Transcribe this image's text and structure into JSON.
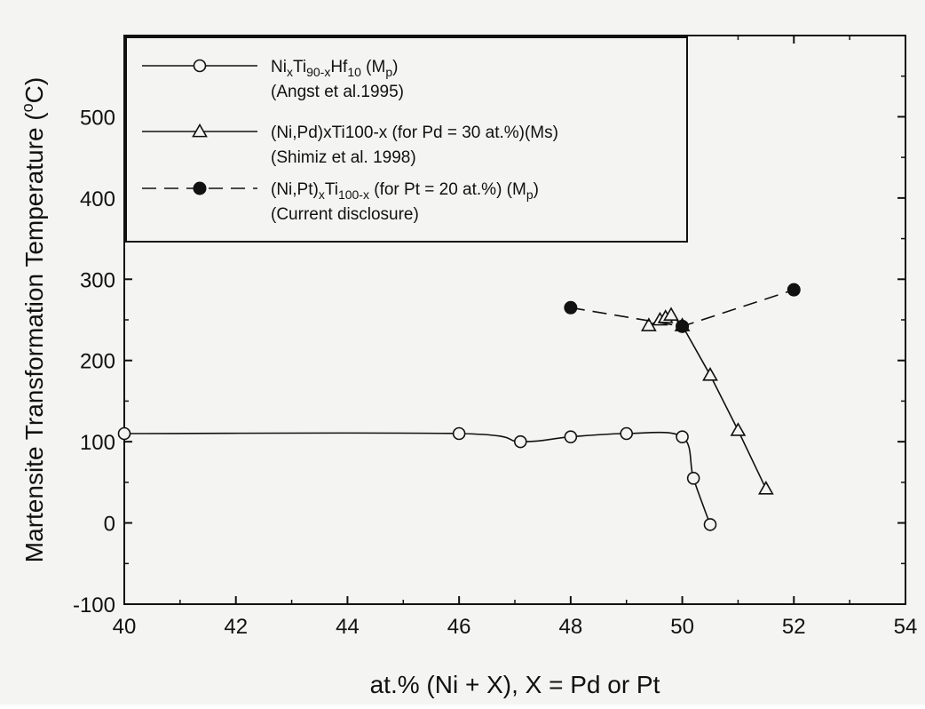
{
  "chart_data": {
    "type": "line",
    "xlabel": "at.% (Ni + X), X = Pd or Pt",
    "ylabel": "Martensite Transformation Temperature (°C)",
    "ylabel_parts": {
      "main": "Martensite Transformation Temperature (",
      "sup": "o",
      "unit": "C)"
    },
    "xlim": [
      40,
      54
    ],
    "ylim": [
      -100,
      600
    ],
    "xticks": [
      40,
      42,
      44,
      46,
      48,
      50,
      52,
      54
    ],
    "yticks": [
      -100,
      0,
      100,
      200,
      300,
      400,
      500
    ],
    "grid": false,
    "legend_position": "top-left",
    "series": [
      {
        "name": "NixTi90-xHf10 (Mp)",
        "legend": {
          "parts": [
            {
              "t": "Ni"
            },
            {
              "t": "x",
              "sub": true
            },
            {
              "t": "Ti"
            },
            {
              "t": "90-x",
              "sub": true
            },
            {
              "t": "Hf"
            },
            {
              "t": "10",
              "sub": true
            },
            {
              "t": "  (M"
            },
            {
              "t": "p",
              "sub": true
            },
            {
              "t": ")"
            }
          ],
          "source": "(Angst et al.1995)"
        },
        "marker": "open-circle",
        "line_style": "solid",
        "smooth": true,
        "x": [
          40.0,
          46.0,
          47.1,
          48.0,
          49.0,
          50.0,
          50.2,
          50.5
        ],
        "y": [
          110,
          110,
          100,
          106,
          110,
          106,
          55,
          -2
        ]
      },
      {
        "name": "(Ni,Pd)xTi100-x (for Pd = 30 at.%)(Ms)",
        "legend": {
          "parts": [
            {
              "t": "(Ni,Pd)xTi100-x (for Pd = 30 at.%)(Ms)"
            }
          ],
          "source": "(Shimiz et al. 1998)"
        },
        "marker": "open-triangle",
        "line_style": "solid",
        "smooth": false,
        "x": [
          49.4,
          49.6,
          49.7,
          49.8,
          50.0,
          50.5,
          51.0,
          51.5
        ],
        "y": [
          243,
          250,
          253,
          256,
          243,
          182,
          114,
          42
        ]
      },
      {
        "name": "(Ni,Pt)xTi100-x (for Pt = 20 at.%) (Mp)",
        "legend": {
          "parts": [
            {
              "t": "(Ni,Pt)"
            },
            {
              "t": "x",
              "sub": true
            },
            {
              "t": "Ti"
            },
            {
              "t": "100-x",
              "sub": true
            },
            {
              "t": " (for Pt = 20 at.%) (M"
            },
            {
              "t": "p",
              "sub": true
            },
            {
              "t": ")"
            }
          ],
          "source": "(Current disclosure)"
        },
        "marker": "filled-circle",
        "line_style": "dashed",
        "smooth": false,
        "x": [
          48.0,
          50.0,
          52.0
        ],
        "y": [
          265,
          242,
          287
        ]
      }
    ]
  }
}
